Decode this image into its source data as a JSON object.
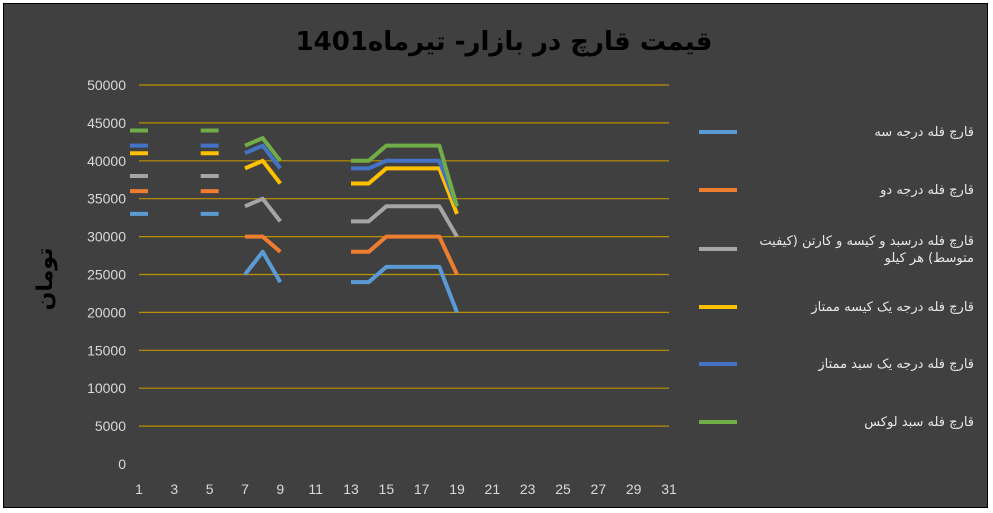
{
  "chart_data": {
    "type": "line",
    "title": "قیمت قارچ در بازار- تیرماه1401",
    "xlabel": "",
    "ylabel": "تومان",
    "xlim": [
      1,
      31
    ],
    "ylim": [
      0,
      50000
    ],
    "x_ticks": [
      1,
      3,
      5,
      7,
      9,
      11,
      13,
      15,
      17,
      19,
      21,
      23,
      25,
      27,
      29,
      31
    ],
    "y_ticks": [
      0,
      5000,
      10000,
      15000,
      20000,
      25000,
      30000,
      35000,
      40000,
      45000,
      50000
    ],
    "grid": true,
    "legend_position": "right",
    "x": [
      1,
      2,
      3,
      4,
      5,
      6,
      7,
      8,
      9,
      10,
      11,
      12,
      13,
      14,
      15,
      16,
      17,
      18,
      19,
      20,
      21,
      22,
      23,
      24,
      25,
      26,
      27,
      28,
      29,
      30,
      31
    ],
    "series": [
      {
        "name": "قارچ فله درجه سه",
        "color": "#5b9bd5",
        "values": [
          33000,
          null,
          null,
          null,
          33000,
          null,
          25000,
          28000,
          24000,
          null,
          null,
          null,
          24000,
          24000,
          26000,
          26000,
          26000,
          26000,
          20000,
          null,
          null,
          null,
          null,
          null,
          null,
          null,
          null,
          null,
          null,
          null,
          null
        ]
      },
      {
        "name": "قارچ فله درجه دو",
        "color": "#ed7d31",
        "values": [
          36000,
          null,
          null,
          null,
          36000,
          null,
          30000,
          30000,
          28000,
          null,
          null,
          null,
          28000,
          28000,
          30000,
          30000,
          30000,
          30000,
          25000,
          null,
          null,
          null,
          null,
          null,
          null,
          null,
          null,
          null,
          null,
          null,
          null
        ]
      },
      {
        "name": "قارچ فله درسبد و کیسه و کارتن (کیفیت متوسط) هر کیلو",
        "color": "#a5a5a5",
        "values": [
          38000,
          null,
          null,
          null,
          38000,
          null,
          34000,
          35000,
          32000,
          null,
          null,
          null,
          32000,
          32000,
          34000,
          34000,
          34000,
          34000,
          30000,
          null,
          null,
          null,
          null,
          null,
          null,
          null,
          null,
          null,
          null,
          null,
          null
        ]
      },
      {
        "name": "قارچ فله درجه یک کیسه ممتاز",
        "color": "#ffc000",
        "values": [
          41000,
          null,
          null,
          null,
          41000,
          null,
          39000,
          40000,
          37000,
          null,
          null,
          null,
          37000,
          37000,
          39000,
          39000,
          39000,
          39000,
          33000,
          null,
          null,
          null,
          null,
          null,
          null,
          null,
          null,
          null,
          null,
          null,
          null
        ]
      },
      {
        "name": "قارچ فله درجه یک سبد ممتاز",
        "color": "#4472c4",
        "values": [
          42000,
          null,
          null,
          null,
          42000,
          null,
          41000,
          42000,
          39000,
          null,
          null,
          null,
          39000,
          39000,
          40000,
          40000,
          40000,
          40000,
          34000,
          null,
          null,
          null,
          null,
          null,
          null,
          null,
          null,
          null,
          null,
          null,
          null
        ]
      },
      {
        "name": "قارچ فله سبد لوکس",
        "color": "#70ad47",
        "values": [
          44000,
          null,
          null,
          null,
          44000,
          null,
          42000,
          43000,
          40000,
          null,
          null,
          null,
          40000,
          40000,
          42000,
          42000,
          42000,
          42000,
          34000,
          null,
          null,
          null,
          null,
          null,
          null,
          null,
          null,
          null,
          null,
          null,
          null
        ]
      }
    ]
  }
}
